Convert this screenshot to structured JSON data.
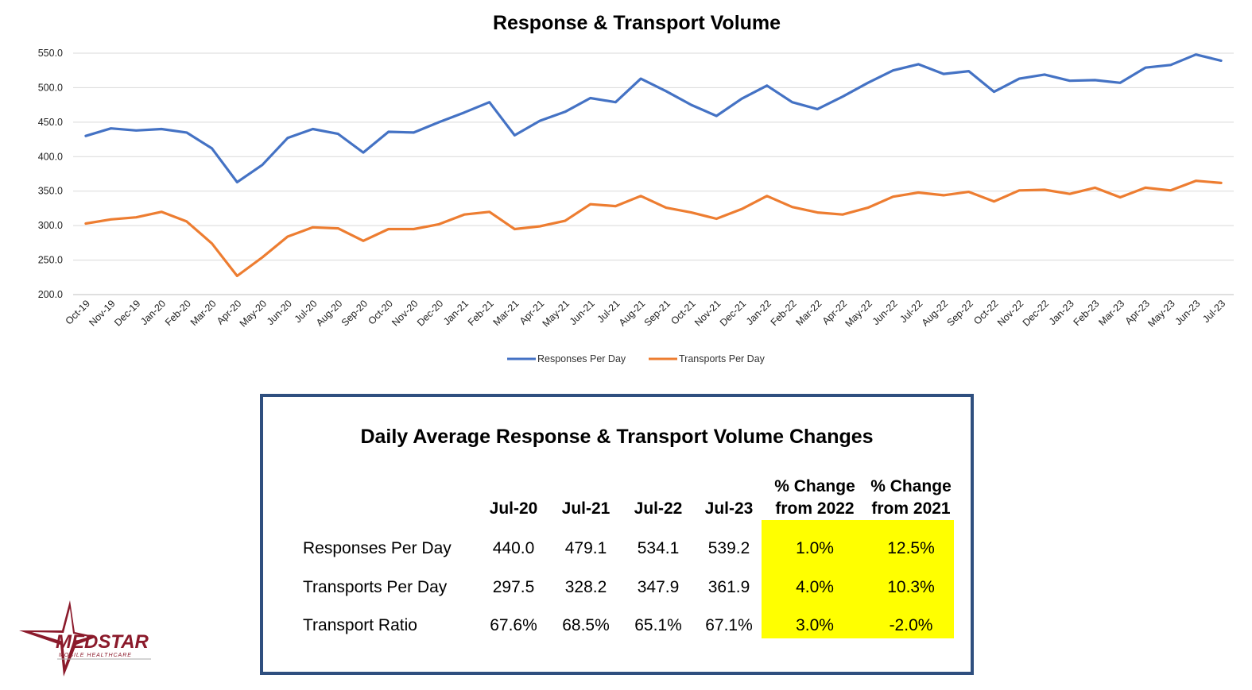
{
  "chart_data": {
    "type": "line",
    "title": "Response & Transport Volume",
    "x": [
      "Oct-19",
      "Nov-19",
      "Dec-19",
      "Jan-20",
      "Feb-20",
      "Mar-20",
      "Apr-20",
      "May-20",
      "Jun-20",
      "Jul-20",
      "Aug-20",
      "Sep-20",
      "Oct-20",
      "Nov-20",
      "Dec-20",
      "Jan-21",
      "Feb-21",
      "Mar-21",
      "Apr-21",
      "May-21",
      "Jun-21",
      "Jul-21",
      "Aug-21",
      "Sep-21",
      "Oct-21",
      "Nov-21",
      "Dec-21",
      "Jan-22",
      "Feb-22",
      "Mar-22",
      "Apr-22",
      "May-22",
      "Jun-22",
      "Jul-22",
      "Aug-22",
      "Sep-22",
      "Oct-22",
      "Nov-22",
      "Dec-22",
      "Jan-23",
      "Feb-23",
      "Mar-23",
      "Apr-23",
      "May-23",
      "Jun-23",
      "Jul-23"
    ],
    "series": [
      {
        "name": "Responses Per Day",
        "color": "#4472c4",
        "values": [
          430,
          441,
          438,
          440,
          435,
          412,
          363,
          388,
          427,
          440,
          433,
          406,
          436,
          435,
          450,
          464,
          479,
          431,
          452,
          465,
          485,
          479,
          513,
          495,
          475,
          459,
          484,
          503,
          479,
          469,
          487,
          507,
          525,
          534,
          520,
          524,
          494,
          513,
          519,
          510,
          511,
          507,
          529,
          533,
          548,
          539.2
        ]
      },
      {
        "name": "Transports Per Day",
        "color": "#ed7d31",
        "values": [
          303,
          309,
          312,
          320,
          306,
          274,
          227,
          254,
          284,
          297.5,
          296,
          278,
          295,
          295,
          302,
          316,
          320,
          295,
          299,
          307,
          331,
          328.2,
          343,
          326,
          319,
          310,
          324,
          343,
          327,
          319,
          316,
          326,
          342,
          347.9,
          344,
          349,
          335,
          351,
          352,
          346,
          355,
          341,
          355,
          351,
          365,
          361.9
        ]
      }
    ],
    "ylim": [
      200,
      550
    ],
    "yticks": [
      "200.0",
      "250.0",
      "300.0",
      "350.0",
      "400.0",
      "450.0",
      "500.0",
      "550.0"
    ],
    "grid": true,
    "legend": "bottom"
  },
  "table": {
    "title": "Daily Average Response & Transport Volume Changes",
    "columns": [
      "Jul-20",
      "Jul-21",
      "Jul-22",
      "Jul-23"
    ],
    "pct_headers": [
      [
        "% Change",
        "from 2022"
      ],
      [
        "% Change",
        "from 2021"
      ]
    ],
    "rows": [
      {
        "label": "Responses Per Day",
        "values": [
          "440.0",
          "479.1",
          "534.1",
          "539.2"
        ],
        "pct": [
          "1.0%",
          "12.5%"
        ]
      },
      {
        "label": "Transports Per Day",
        "values": [
          "297.5",
          "328.2",
          "347.9",
          "361.9"
        ],
        "pct": [
          "4.0%",
          "10.3%"
        ]
      },
      {
        "label": "Transport Ratio",
        "values": [
          "67.6%",
          "68.5%",
          "65.1%",
          "67.1%"
        ],
        "pct": [
          "3.0%",
          "-2.0%"
        ]
      }
    ],
    "highlight_color": "#ffff00"
  },
  "logo": {
    "text": "MEDSTAR",
    "subtext": "MOBILE HEALTHCARE",
    "color": "#8b1a2b"
  }
}
